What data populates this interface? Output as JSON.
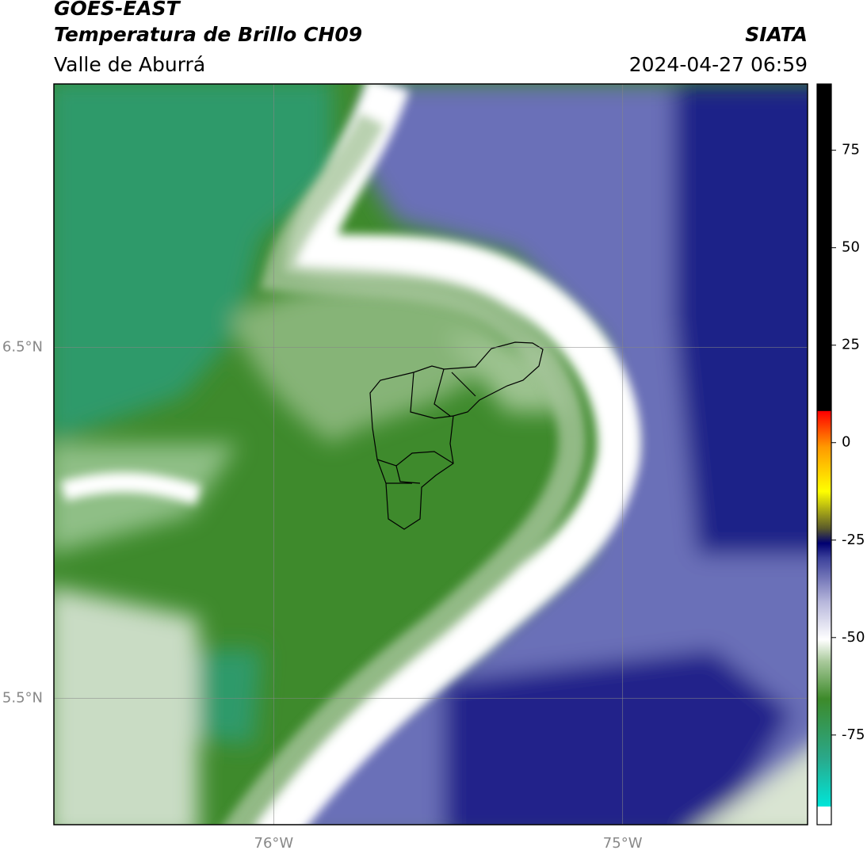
{
  "header": {
    "title": "GOES-EAST",
    "subtitle": "Temperatura de Brillo CH09",
    "region": "Valle de Aburrá",
    "source": "SIATA",
    "datetime": "2024-04-27 06:59"
  },
  "map": {
    "xlim": [
      -76.63,
      -74.47
    ],
    "ylim": [
      5.14,
      7.25
    ],
    "xticks": [
      {
        "value": -76,
        "label": "76°W"
      },
      {
        "value": -75,
        "label": "75°W"
      }
    ],
    "yticks": [
      {
        "value": 5.5,
        "label": "5.5°N"
      },
      {
        "value": 6.5,
        "label": "6.5°N"
      }
    ],
    "grid": true
  },
  "colorbar": {
    "lim": [
      -98,
      92
    ],
    "ticks": [
      -75,
      -50,
      -25,
      0,
      25,
      50,
      75
    ]
  }
}
